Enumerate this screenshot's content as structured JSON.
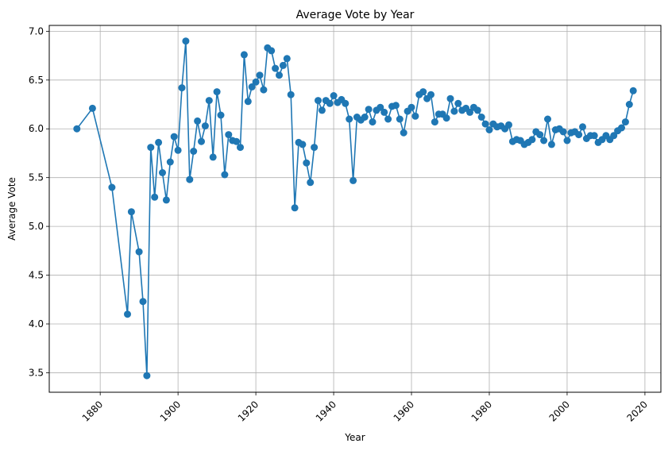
{
  "chart_data": {
    "type": "line",
    "title": "Average Vote by Year",
    "xlabel": "Year",
    "ylabel": "Average Vote",
    "xlim": [
      1866.9,
      2024.1
    ],
    "ylim": [
      3.3,
      7.06
    ],
    "x_ticks": [
      "1880",
      "1900",
      "1920",
      "1940",
      "1960",
      "1980",
      "2000",
      "2020"
    ],
    "y_ticks": [
      "3.5",
      "4.0",
      "4.5",
      "5.0",
      "5.5",
      "6.0",
      "6.5",
      "7.0"
    ],
    "grid": true,
    "marker": "circle",
    "color": "#1f77b4",
    "series": [
      {
        "x": [
          1874,
          1878,
          1883,
          1887,
          1888,
          1890,
          1891,
          1892,
          1893,
          1894,
          1895,
          1896,
          1897,
          1898,
          1899,
          1900,
          1901,
          1902,
          1903,
          1904,
          1905,
          1906,
          1907,
          1908,
          1909,
          1910,
          1911,
          1912,
          1913,
          1914,
          1915,
          1916,
          1917,
          1918,
          1919,
          1920,
          1921,
          1922,
          1923,
          1924,
          1925,
          1926,
          1927,
          1928,
          1929,
          1930,
          1931,
          1932,
          1933,
          1934,
          1935,
          1936,
          1937,
          1938,
          1939,
          1940,
          1941,
          1942,
          1943,
          1944,
          1945,
          1946,
          1947,
          1948,
          1949,
          1950,
          1951,
          1952,
          1953,
          1954,
          1955,
          1956,
          1957,
          1958,
          1959,
          1960,
          1961,
          1962,
          1963,
          1964,
          1965,
          1966,
          1967,
          1968,
          1969,
          1970,
          1971,
          1972,
          1973,
          1974,
          1975,
          1976,
          1977,
          1978,
          1979,
          1980,
          1981,
          1982,
          1983,
          1984,
          1985,
          1986,
          1987,
          1988,
          1989,
          1990,
          1991,
          1992,
          1993,
          1994,
          1995,
          1996,
          1997,
          1998,
          1999,
          2000,
          2001,
          2002,
          2003,
          2004,
          2005,
          2006,
          2007,
          2008,
          2009,
          2010,
          2011,
          2012,
          2013,
          2014,
          2015,
          2016,
          2017
        ],
        "y": [
          6.0,
          6.21,
          5.4,
          4.1,
          5.15,
          4.74,
          4.23,
          3.47,
          5.81,
          5.3,
          5.86,
          5.55,
          5.27,
          5.66,
          5.92,
          5.78,
          6.42,
          6.9,
          5.48,
          5.77,
          6.08,
          5.87,
          6.03,
          6.29,
          5.71,
          6.38,
          6.14,
          5.53,
          5.94,
          5.88,
          5.87,
          5.81,
          6.76,
          6.28,
          6.43,
          6.48,
          6.55,
          6.4,
          6.83,
          6.8,
          6.62,
          6.55,
          6.65,
          6.72,
          6.35,
          5.19,
          5.86,
          5.84,
          5.65,
          5.45,
          5.81,
          6.29,
          6.19,
          6.29,
          6.26,
          6.34,
          6.27,
          6.3,
          6.26,
          6.1,
          5.47,
          6.12,
          6.09,
          6.12,
          6.2,
          6.07,
          6.19,
          6.22,
          6.17,
          6.1,
          6.23,
          6.24,
          6.1,
          5.96,
          6.18,
          6.22,
          6.13,
          6.35,
          6.38,
          6.31,
          6.35,
          6.07,
          6.15,
          6.15,
          6.11,
          6.31,
          6.18,
          6.26,
          6.19,
          6.21,
          6.17,
          6.22,
          6.19,
          6.12,
          6.05,
          5.99,
          6.05,
          6.02,
          6.03,
          6.0,
          6.04,
          5.87,
          5.89,
          5.88,
          5.84,
          5.86,
          5.89,
          5.97,
          5.94,
          5.88,
          6.1,
          5.84,
          5.99,
          6.0,
          5.97,
          5.88,
          5.96,
          5.97,
          5.94,
          6.02,
          5.9,
          5.93,
          5.93,
          5.86,
          5.89,
          5.93,
          5.89,
          5.93,
          5.98,
          6.01,
          6.07,
          6.25,
          6.39
        ]
      }
    ]
  }
}
